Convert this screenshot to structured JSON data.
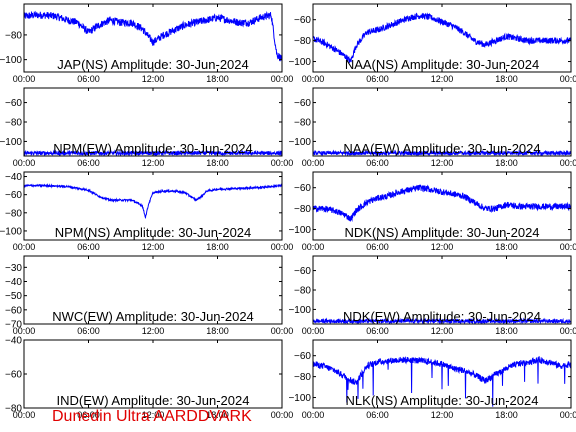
{
  "credit": "Dunedin Ultra AARDDVARK",
  "colors": {
    "trace": "#0000ff",
    "axes": "#000000",
    "credit": "#e00000",
    "background": "#ffffff"
  },
  "chart_data": [
    {
      "type": "line",
      "title": "JAP(NS) Amplitude: 30-Jun-2024",
      "xticks": [
        "00:00",
        "06:00",
        "12:00",
        "18:00",
        "00:00"
      ],
      "yticks": [
        -80,
        -100
      ],
      "ylim": [
        -110,
        -55
      ],
      "x_hours": [
        0,
        1,
        2,
        3,
        4,
        5,
        6,
        7,
        8,
        9,
        10,
        11,
        12,
        13,
        14,
        15,
        16,
        17,
        18,
        19,
        20,
        21,
        22,
        23,
        23.5,
        24
      ],
      "y": [
        -65,
        -64,
        -64,
        -65,
        -68,
        -70,
        -78,
        -72,
        -68,
        -70,
        -70,
        -75,
        -86,
        -80,
        -76,
        -72,
        -70,
        -68,
        -66,
        -68,
        -70,
        -70,
        -66,
        -64,
        -95,
        -100
      ],
      "noise": 3,
      "grid": false
    },
    {
      "type": "line",
      "title": "NAA(NS) Amplitude: 30-Jun-2024",
      "xticks": [
        "00:00",
        "06:00",
        "12:00",
        "18:00",
        "00:00"
      ],
      "yticks": [
        -60,
        -80,
        -100
      ],
      "ylim": [
        -110,
        -45
      ],
      "x_hours": [
        0,
        1,
        2,
        3,
        3.5,
        4,
        5,
        6,
        7,
        8,
        9,
        10,
        11,
        12,
        13,
        14,
        15,
        16,
        17,
        18,
        19,
        20,
        21,
        22,
        23,
        24
      ],
      "y": [
        -78,
        -82,
        -88,
        -95,
        -100,
        -85,
        -72,
        -70,
        -66,
        -62,
        -58,
        -56,
        -58,
        -62,
        -66,
        -72,
        -80,
        -84,
        -80,
        -76,
        -78,
        -80,
        -80,
        -80,
        -80,
        -80
      ],
      "noise": 3,
      "grid": false
    },
    {
      "type": "line",
      "title": "NPM(EW) Amplitude: 30-Jun-2024",
      "xticks": [
        "00:00",
        "06:00",
        "12:00",
        "18:00",
        "00:00"
      ],
      "yticks": [
        -60,
        -80,
        -100
      ],
      "ylim": [
        -115,
        -45
      ],
      "x_hours": [
        0,
        24
      ],
      "y": [
        -112,
        -112
      ],
      "noise": 2,
      "grid": false
    },
    {
      "type": "line",
      "title": "NAA(EW) Amplitude: 30-Jun-2024",
      "xticks": [
        "00:00",
        "06:00",
        "12:00",
        "18:00",
        "00:00"
      ],
      "yticks": [
        -60,
        -80,
        -100
      ],
      "ylim": [
        -115,
        -45
      ],
      "x_hours": [
        0,
        24
      ],
      "y": [
        -112,
        -112
      ],
      "noise": 2,
      "grid": false
    },
    {
      "type": "line",
      "title": "NPM(NS) Amplitude: 30-Jun-2024",
      "xticks": [
        "00:00",
        "06:00",
        "12:00",
        "18:00",
        "00:00"
      ],
      "yticks": [
        -40,
        -60,
        -80,
        -100
      ],
      "ylim": [
        -110,
        -35
      ],
      "x_hours": [
        0,
        2,
        4,
        6,
        7,
        8,
        9,
        10,
        11,
        11.3,
        11.6,
        12,
        13,
        14,
        15,
        16,
        16.5,
        17,
        18,
        20,
        22,
        24
      ],
      "y": [
        -50,
        -50,
        -51,
        -55,
        -62,
        -66,
        -66,
        -66,
        -72,
        -85,
        -70,
        -58,
        -56,
        -56,
        -58,
        -66,
        -62,
        -56,
        -54,
        -53,
        -52,
        -50
      ],
      "noise": 1,
      "grid": false
    },
    {
      "type": "line",
      "title": "NDK(NS) Amplitude: 30-Jun-2024",
      "xticks": [
        "00:00",
        "06:00",
        "12:00",
        "18:00",
        "00:00"
      ],
      "yticks": [
        -60,
        -80,
        -100
      ],
      "ylim": [
        -110,
        -45
      ],
      "x_hours": [
        0,
        1,
        2,
        3,
        3.5,
        4,
        5,
        6,
        7,
        8,
        9,
        10,
        11,
        12,
        13,
        14,
        15,
        16,
        17,
        18,
        19,
        20,
        21,
        22,
        23,
        24
      ],
      "y": [
        -80,
        -80,
        -82,
        -86,
        -90,
        -82,
        -74,
        -70,
        -68,
        -64,
        -62,
        -60,
        -62,
        -64,
        -66,
        -68,
        -74,
        -80,
        -80,
        -76,
        -78,
        -78,
        -78,
        -78,
        -78,
        -78
      ],
      "noise": 3,
      "grid": false
    },
    {
      "type": "line",
      "title": "NWC(EW) Amplitude: 30-Jun-2024",
      "xticks": [
        "00:00",
        "06:00",
        "12:00",
        "18:00",
        "00:00"
      ],
      "yticks": [
        -30,
        -40,
        -50,
        -60,
        -70
      ],
      "ylim": [
        -70,
        -22
      ],
      "x_hours": [],
      "y": [],
      "noise": 0,
      "grid": false
    },
    {
      "type": "line",
      "title": "NDK(EW) Amplitude: 30-Jun-2024",
      "xticks": [
        "00:00",
        "06:00",
        "12:00",
        "18:00",
        "00:00"
      ],
      "yticks": [
        -60,
        -80,
        -100
      ],
      "ylim": [
        -115,
        -45
      ],
      "x_hours": [
        0,
        24
      ],
      "y": [
        -112,
        -112
      ],
      "noise": 2,
      "grid": false
    },
    {
      "type": "line",
      "title": "IND(EW) Amplitude: 30-Jun-2024",
      "xticks": [
        "00:00",
        "06:00",
        "12:00",
        "18:00",
        "00:00"
      ],
      "yticks": [
        -40,
        -60,
        -80
      ],
      "ylim": [
        -80,
        -40
      ],
      "x_hours": [],
      "y": [],
      "noise": 0,
      "grid": false
    },
    {
      "type": "line",
      "title": "NLK(NS) Amplitude: 30-Jun-2024",
      "xticks": [
        "00:00",
        "06:00",
        "12:00",
        "18:00",
        "00:00"
      ],
      "yticks": [
        -60,
        -80,
        -100
      ],
      "ylim": [
        -110,
        -45
      ],
      "x_hours": [
        0,
        1,
        2,
        3,
        4,
        5,
        6,
        7,
        8,
        9,
        10,
        11,
        12,
        13,
        14,
        15,
        16,
        17,
        18,
        19,
        20,
        21,
        22,
        23,
        24
      ],
      "y": [
        -68,
        -70,
        -74,
        -80,
        -86,
        -70,
        -66,
        -65,
        -64,
        -64,
        -65,
        -66,
        -68,
        -72,
        -74,
        -78,
        -84,
        -78,
        -72,
        -68,
        -66,
        -64,
        -66,
        -70,
        -68
      ],
      "noise": 3,
      "spikes": true,
      "grid": false
    }
  ]
}
